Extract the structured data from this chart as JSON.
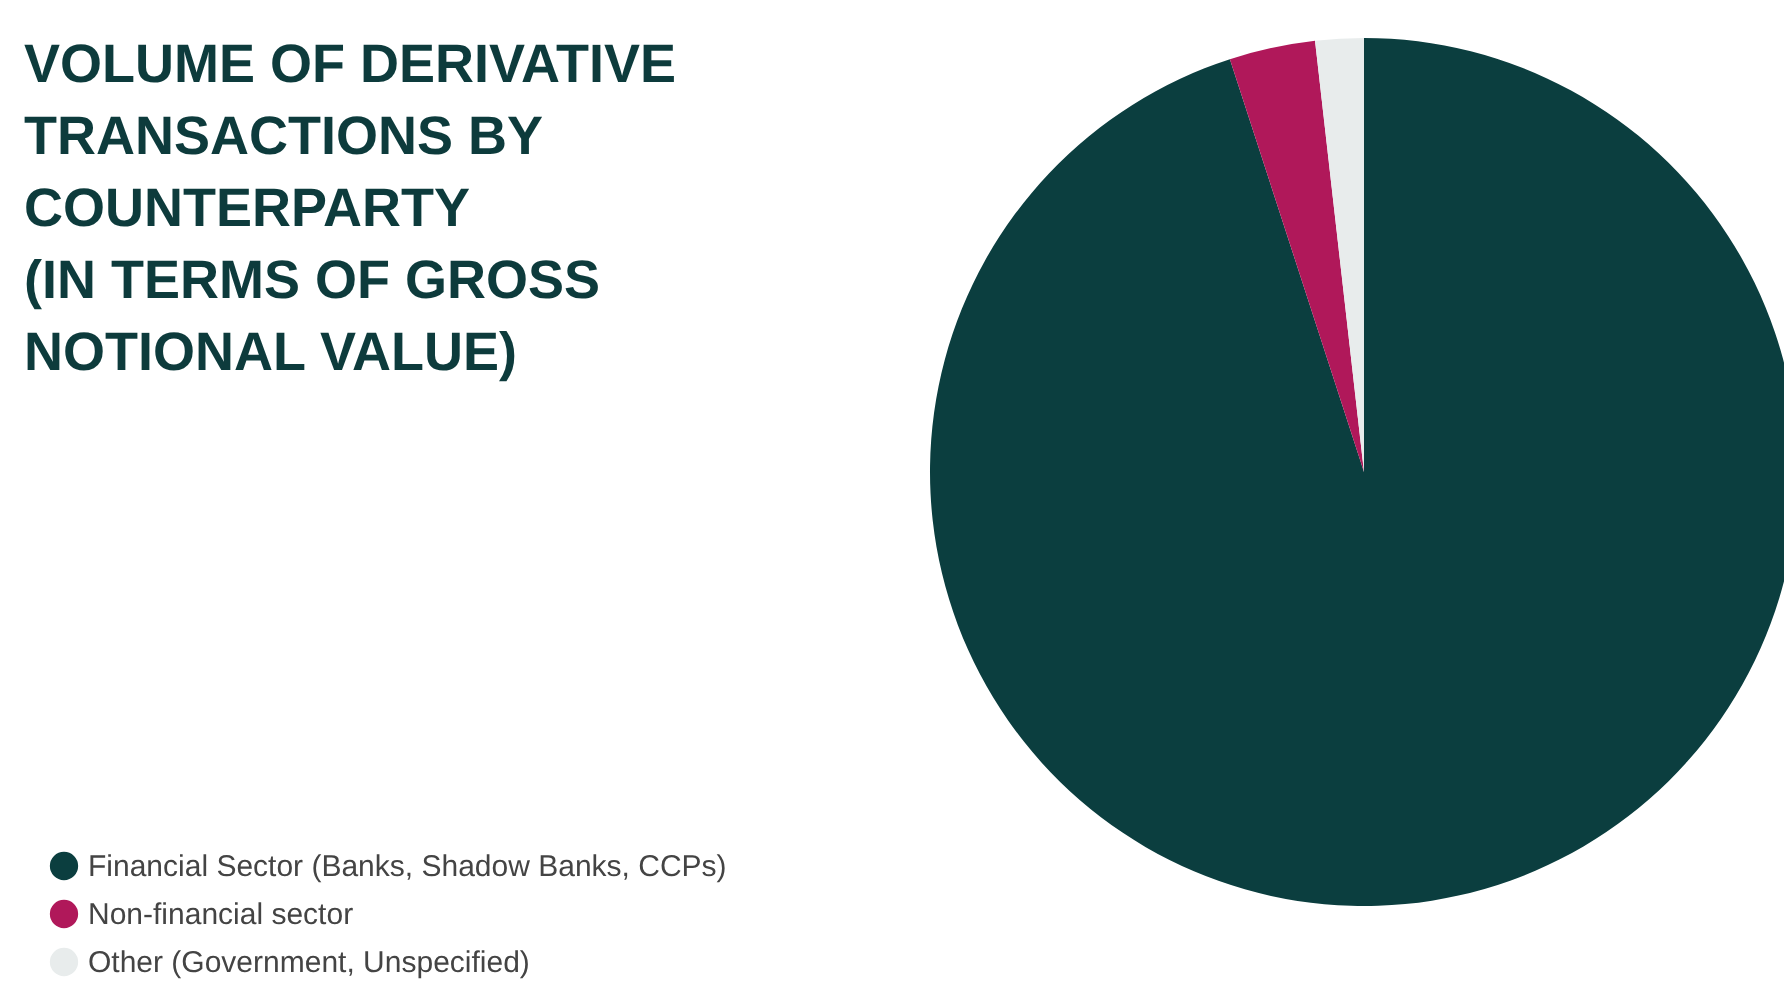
{
  "chart_data": {
    "type": "pie",
    "title": "VOLUME OF DERIVATIVE\nTRANSACTIONS BY\nCOUNTERPARTY\n(IN TERMS OF GROSS\nNOTIONAL VALUE)",
    "categories": [
      "Financial Sector (Banks, Shadow Banks, CCPs)",
      "Non-financial sector",
      "Other (Government, Unspecified)"
    ],
    "values": [
      95,
      3.2,
      1.8
    ],
    "colors": [
      "#0b3e3f",
      "#b0185a",
      "#e8ecec"
    ],
    "legend": "bottom left"
  }
}
